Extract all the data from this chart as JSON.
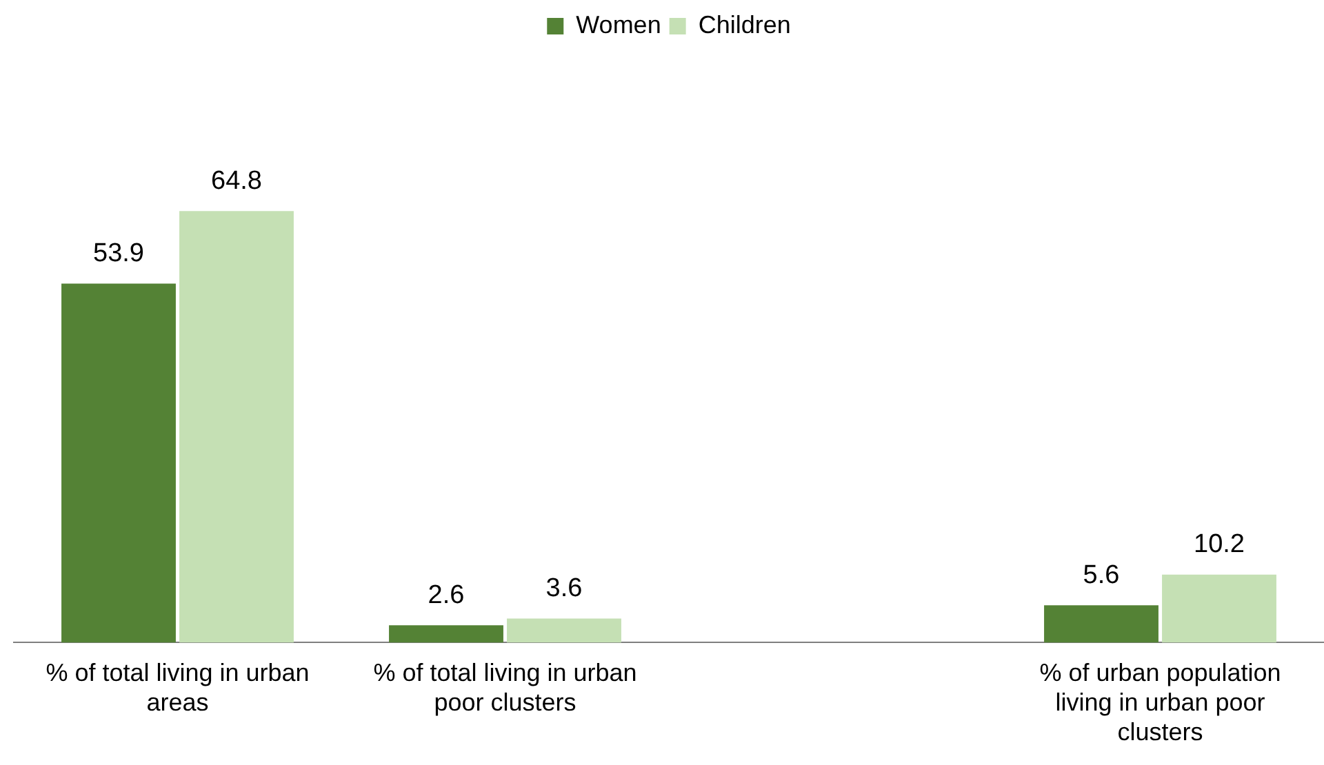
{
  "chart_data": {
    "type": "bar",
    "categories": [
      "% of total living in urban areas",
      "% of total living in urban poor clusters",
      null,
      "% of urban population living in urban poor clusters"
    ],
    "series": [
      {
        "name": "Women",
        "color": "#548235",
        "values": [
          53.9,
          2.6,
          null,
          5.6
        ]
      },
      {
        "name": "Children",
        "color": "#c5e0b4",
        "values": [
          64.8,
          3.6,
          null,
          10.2
        ]
      }
    ],
    "data_labels": true,
    "legend": "top",
    "grid": false
  }
}
